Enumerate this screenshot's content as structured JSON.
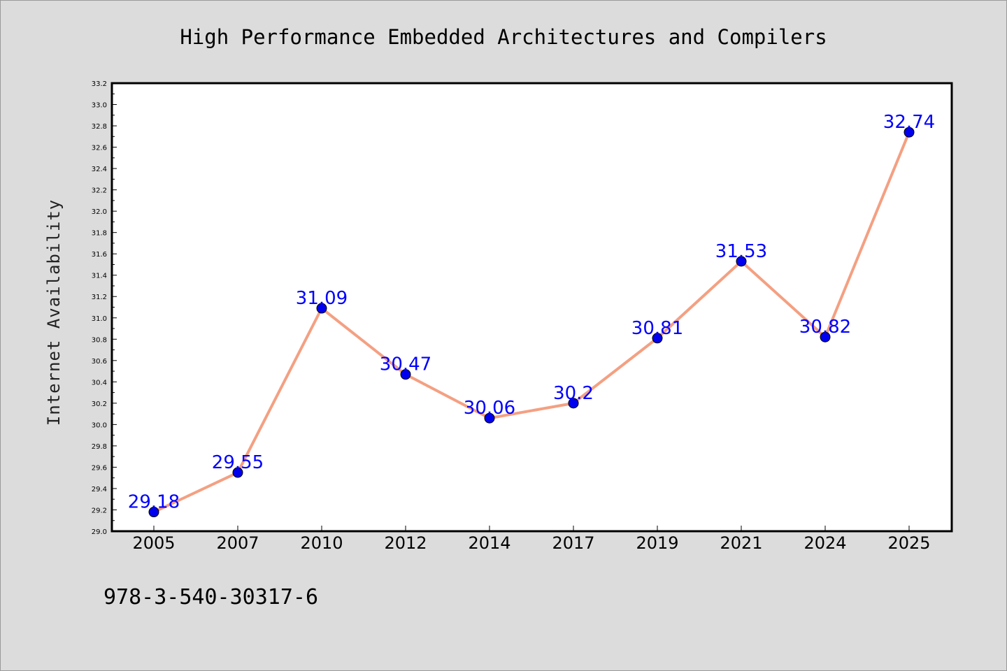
{
  "chart_data": {
    "type": "line",
    "title": "High Performance Embedded Architectures and Compilers",
    "ylabel": "Internet Availability",
    "xlabel": "",
    "categories": [
      "2005",
      "2007",
      "2010",
      "2012",
      "2014",
      "2017",
      "2019",
      "2021",
      "2024",
      "2025"
    ],
    "series": [
      {
        "values": [
          29.18,
          29.55,
          31.09,
          30.47,
          30.06,
          30.2,
          30.81,
          31.53,
          30.82,
          32.74
        ]
      }
    ],
    "data_labels": [
      "29.18",
      "29.55",
      "31.09",
      "30.47",
      "30.06",
      "30.2",
      "30.81",
      "31.53",
      "30.82",
      "32.74"
    ],
    "ylim": [
      29.0,
      33.2
    ],
    "yticks": [
      "29.0",
      "29.2",
      "29.4",
      "29.6",
      "29.8",
      "30.0",
      "30.2",
      "30.4",
      "30.6",
      "30.8",
      "31.0",
      "31.2",
      "31.4",
      "31.6",
      "31.8",
      "32.0",
      "32.2",
      "32.4",
      "32.6",
      "32.8",
      "33.0",
      "33.2"
    ],
    "ytick_values": [
      29.0,
      29.2,
      29.4,
      29.6,
      29.8,
      30.0,
      30.2,
      30.4,
      30.6,
      30.8,
      31.0,
      31.2,
      31.4,
      31.6,
      31.8,
      32.0,
      32.2,
      32.4,
      32.6,
      32.8,
      33.0,
      33.2
    ],
    "grid": false,
    "legend": "none",
    "footnote": "978-3-540-30317-6"
  },
  "colors": {
    "line": "#f4a082",
    "marker": "#0000ee",
    "label": "#0000ff",
    "background": "#dcdcdc",
    "plot_background": "#ffffff"
  }
}
